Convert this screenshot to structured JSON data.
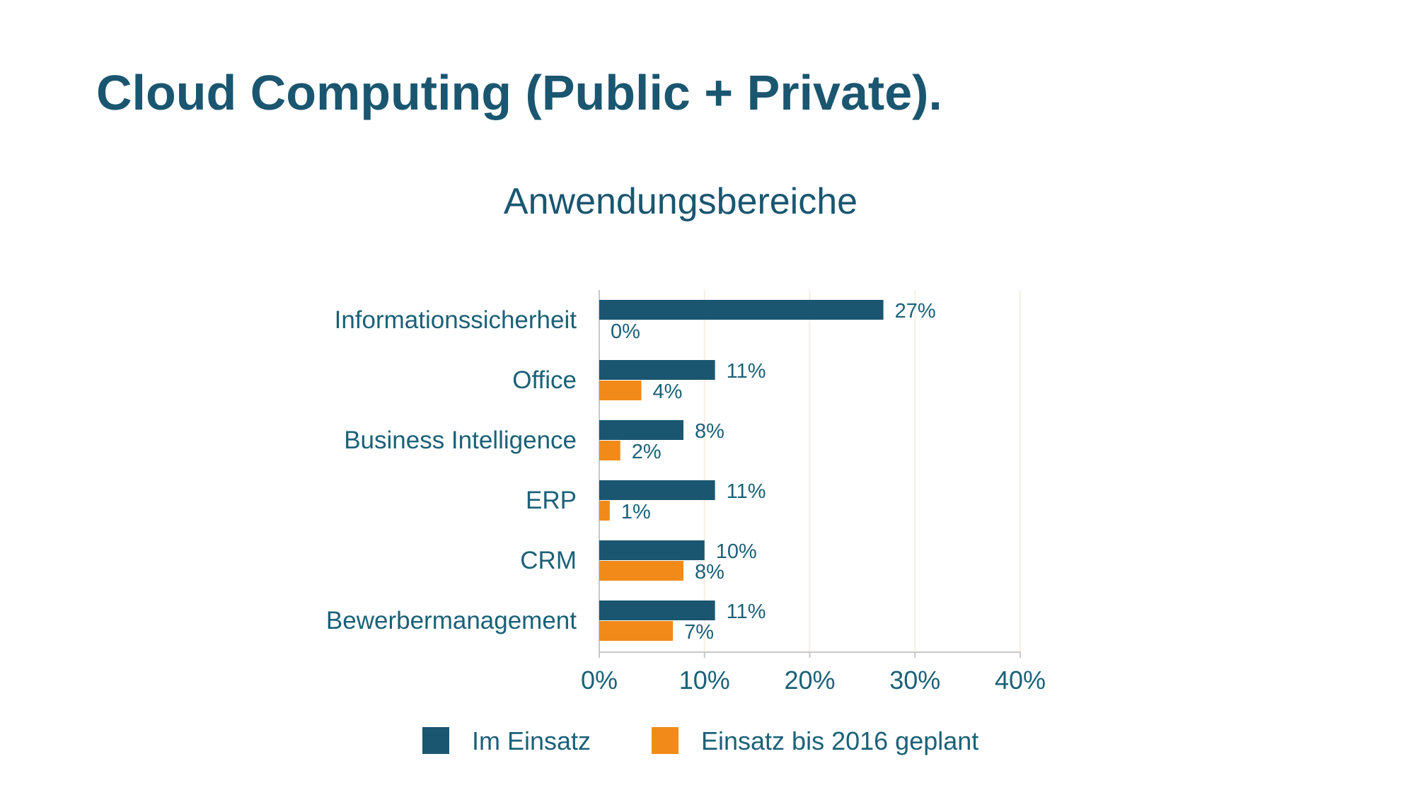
{
  "slide": {
    "title": "Cloud Computing (Public + Private)."
  },
  "colors": {
    "title": "#1a5670",
    "label_text": "#1b6178",
    "series_in_use": "#1a5670",
    "series_planned": "#f28a1a",
    "axis": "#c8c8c8",
    "grid": "#f7eee2"
  },
  "chart_data": {
    "type": "bar",
    "orientation": "horizontal",
    "title": "Anwendungsbereiche",
    "categories": [
      "Informationssicherheit",
      "Office",
      "Business Intelligence",
      "ERP",
      "CRM",
      "Bewerbermanagement"
    ],
    "series": [
      {
        "name": "Im Einsatz",
        "color": "#1a5670",
        "values": [
          27,
          11,
          8,
          11,
          10,
          11
        ],
        "labels": [
          "27%",
          "11%",
          "8%",
          "11%",
          "10%",
          "11%"
        ]
      },
      {
        "name": "Einsatz bis 2016 geplant",
        "color": "#f28a1a",
        "values": [
          0,
          4,
          2,
          1,
          8,
          7
        ],
        "labels": [
          "0%",
          "4%",
          "2%",
          "1%",
          "8%",
          "7%"
        ]
      }
    ],
    "xlim": [
      0,
      40
    ],
    "xticks": [
      "0%",
      "10%",
      "20%",
      "30%",
      "40%"
    ],
    "unit": "%",
    "grid": true,
    "legend": "bottom"
  }
}
